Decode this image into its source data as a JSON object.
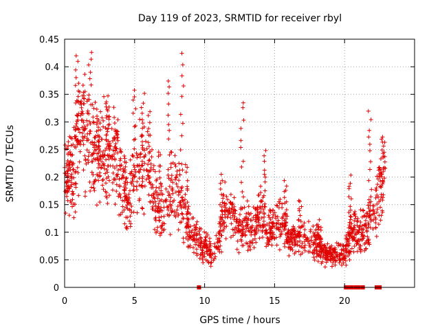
{
  "chart_data": {
    "type": "scatter",
    "title": "Day 119 of 2023, SRMTID for receiver rbyl",
    "xlabel": "GPS time / hours",
    "ylabel": "SRMTID / TECUs",
    "xlim": [
      0,
      25
    ],
    "ylim": [
      0,
      0.45
    ],
    "x_ticks": [
      0,
      5,
      10,
      15,
      20
    ],
    "x_tick_labels": [
      "0",
      "5",
      "10",
      "15",
      "20"
    ],
    "y_ticks": [
      0,
      0.05,
      0.1,
      0.15,
      0.2,
      0.25,
      0.3,
      0.35,
      0.4,
      0.45
    ],
    "y_tick_labels": [
      "0",
      "0.05",
      "0.1",
      "0.15",
      "0.2",
      "0.25",
      "0.3",
      "0.35",
      "0.4",
      "0.45"
    ],
    "grid": true,
    "series_color": "#e00000",
    "trend": [
      [
        0.0,
        0.185
      ],
      [
        0.5,
        0.2
      ],
      [
        1.0,
        0.27
      ],
      [
        1.5,
        0.28
      ],
      [
        2.0,
        0.25
      ],
      [
        2.5,
        0.24
      ],
      [
        3.0,
        0.25
      ],
      [
        3.5,
        0.24
      ],
      [
        4.0,
        0.2
      ],
      [
        4.5,
        0.15
      ],
      [
        5.0,
        0.2
      ],
      [
        5.5,
        0.22
      ],
      [
        6.0,
        0.2
      ],
      [
        6.5,
        0.15
      ],
      [
        7.0,
        0.13
      ],
      [
        7.5,
        0.17
      ],
      [
        8.0,
        0.18
      ],
      [
        8.5,
        0.13
      ],
      [
        9.0,
        0.1
      ],
      [
        9.5,
        0.085
      ],
      [
        10.0,
        0.075
      ],
      [
        10.5,
        0.06
      ],
      [
        11.0,
        0.09
      ],
      [
        11.5,
        0.14
      ],
      [
        12.0,
        0.13
      ],
      [
        12.5,
        0.1
      ],
      [
        13.0,
        0.11
      ],
      [
        13.5,
        0.11
      ],
      [
        14.0,
        0.13
      ],
      [
        14.5,
        0.1
      ],
      [
        15.0,
        0.11
      ],
      [
        15.5,
        0.12
      ],
      [
        16.0,
        0.09
      ],
      [
        16.5,
        0.085
      ],
      [
        17.0,
        0.09
      ],
      [
        17.5,
        0.085
      ],
      [
        18.0,
        0.08
      ],
      [
        18.5,
        0.06
      ],
      [
        19.0,
        0.055
      ],
      [
        19.5,
        0.06
      ],
      [
        20.0,
        0.06
      ],
      [
        20.5,
        0.1
      ],
      [
        21.0,
        0.1
      ],
      [
        21.5,
        0.11
      ],
      [
        22.0,
        0.13
      ],
      [
        22.5,
        0.18
      ],
      [
        22.8,
        0.2
      ]
    ],
    "peaks": [
      [
        0.3,
        0.25
      ],
      [
        0.9,
        0.42
      ],
      [
        1.3,
        0.35
      ],
      [
        1.8,
        0.43
      ],
      [
        2.4,
        0.32
      ],
      [
        3.1,
        0.34
      ],
      [
        3.7,
        0.3
      ],
      [
        4.3,
        0.24
      ],
      [
        5.0,
        0.36
      ],
      [
        5.6,
        0.35
      ],
      [
        6.1,
        0.32
      ],
      [
        6.8,
        0.25
      ],
      [
        7.5,
        0.38
      ],
      [
        8.4,
        0.43
      ],
      [
        8.7,
        0.22
      ],
      [
        11.2,
        0.2
      ],
      [
        12.7,
        0.34
      ],
      [
        14.3,
        0.25
      ],
      [
        15.8,
        0.19
      ],
      [
        16.8,
        0.16
      ],
      [
        18.2,
        0.12
      ],
      [
        20.4,
        0.2
      ],
      [
        21.8,
        0.32
      ],
      [
        22.8,
        0.27
      ]
    ],
    "zero_points": [
      9.6,
      20.1,
      20.2,
      20.3,
      20.5,
      20.8,
      21.0,
      21.3,
      22.3,
      22.5
    ]
  }
}
